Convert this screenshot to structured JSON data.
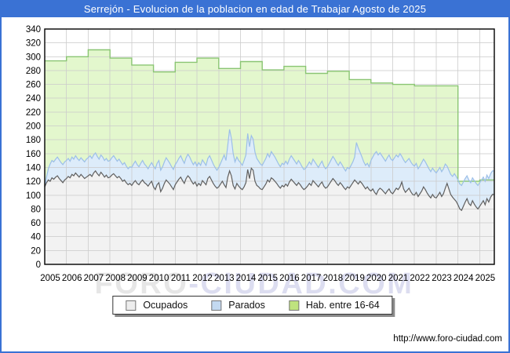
{
  "window": {
    "title": "Serrejón - Evolucion de la poblacion en edad de Trabajar Agosto de 2025"
  },
  "watermark": {
    "left": "FORO",
    "right": "-CIUDAD.COM"
  },
  "footer": {
    "url": "http://www.foro-ciudad.com"
  },
  "colors": {
    "titlebar": "#3a72d4",
    "frame_border": "#3a72d4",
    "grid": "#cccccc",
    "plot_border": "#000000",
    "plot_background": "#ffffff"
  },
  "legend": {
    "items": [
      {
        "id": "ocupados",
        "label": "Ocupados",
        "swatch": "#ededed",
        "swatch_border": "#777777"
      },
      {
        "id": "parados",
        "label": "Parados",
        "swatch": "#c3d9f1",
        "swatch_border": "#777777"
      },
      {
        "id": "hab-16-64",
        "label": "Hab. entre 16-64",
        "swatch": "#bfe37e",
        "swatch_border": "#777777"
      }
    ]
  },
  "chart_data": {
    "type": "area",
    "title": "Serrejón - Evolucion de la poblacion en edad de Trabajar Agosto de 2025",
    "x_unit": "month",
    "x_range": [
      "2005-01",
      "2025-08"
    ],
    "x_tick_years": [
      2005,
      2006,
      2007,
      2008,
      2009,
      2010,
      2011,
      2012,
      2013,
      2014,
      2015,
      2016,
      2017,
      2018,
      2019,
      2020,
      2021,
      2022,
      2023,
      2024,
      2025
    ],
    "ylim": [
      0,
      340
    ],
    "y_ticks": [
      0,
      20,
      40,
      60,
      80,
      100,
      120,
      140,
      160,
      180,
      200,
      220,
      240,
      260,
      280,
      300,
      320,
      340
    ],
    "grid": true,
    "legend_position": "bottom",
    "series": [
      {
        "name": "Hab. entre 16-64",
        "style": "yearly-step",
        "line_color": "#8ac573",
        "fill_color": "#e3f7cd",
        "years": [
          2005,
          2006,
          2007,
          2008,
          2009,
          2010,
          2011,
          2012,
          2013,
          2014,
          2015,
          2016,
          2017,
          2018,
          2019,
          2020,
          2021,
          2022,
          2023,
          2024,
          2025
        ],
        "values": [
          294,
          300,
          310,
          298,
          288,
          278,
          292,
          298,
          283,
          293,
          281,
          286,
          276,
          279,
          267,
          262,
          260,
          258,
          258,
          120,
          122
        ]
      },
      {
        "name": "Parados",
        "style": "monthly-area",
        "note": "línea dibujada = Ocupados + Parados (banda apilada)",
        "line_color": "#9cbfe8",
        "fill_color": "#ddecfa",
        "values": [
          112,
          126,
          138,
          145,
          150,
          148,
          152,
          155,
          151,
          147,
          144,
          148,
          150,
          153,
          149,
          155,
          152,
          157,
          153,
          150,
          154,
          151,
          148,
          152,
          154,
          157,
          153,
          158,
          161,
          156,
          152,
          158,
          155,
          150,
          153,
          149,
          150,
          154,
          157,
          153,
          149,
          152,
          148,
          144,
          147,
          142,
          138,
          141,
          140,
          145,
          149,
          144,
          141,
          146,
          150,
          145,
          142,
          138,
          143,
          147,
          142,
          138,
          146,
          150,
          136,
          141,
          148,
          154,
          150,
          146,
          141,
          137,
          144,
          148,
          153,
          157,
          151,
          146,
          154,
          159,
          155,
          149,
          144,
          148,
          142,
          147,
          143,
          151,
          147,
          143,
          153,
          157,
          151,
          145,
          140,
          136,
          140,
          146,
          152,
          158,
          150,
          172,
          195,
          182,
          160,
          148,
          155,
          150,
          147,
          143,
          150,
          158,
          189,
          170,
          186,
          181,
          162,
          153,
          149,
          145,
          143,
          148,
          153,
          160,
          155,
          163,
          159,
          155,
          150,
          145,
          141,
          146,
          144,
          149,
          145,
          152,
          157,
          153,
          149,
          145,
          150,
          146,
          141,
          137,
          139,
          143,
          148,
          144,
          152,
          148,
          144,
          140,
          145,
          149,
          142,
          138,
          141,
          146,
          151,
          156,
          152,
          147,
          143,
          148,
          144,
          139,
          135,
          140,
          138,
          143,
          148,
          155,
          176,
          168,
          162,
          155,
          148,
          143,
          146,
          141,
          150,
          155,
          160,
          163,
          158,
          161,
          157,
          153,
          149,
          154,
          158,
          152,
          150,
          154,
          158,
          155,
          160,
          156,
          151,
          147,
          150,
          153,
          148,
          144,
          142,
          146,
          138,
          142,
          147,
          152,
          148,
          143,
          138,
          134,
          139,
          135,
          132,
          136,
          140,
          134,
          138,
          145,
          142,
          136,
          130,
          127,
          131,
          127,
          122,
          116,
          114,
          119,
          124,
          128,
          122,
          118,
          125,
          121,
          117,
          114,
          118,
          122,
          126,
          120,
          129,
          124,
          131,
          135
        ]
      },
      {
        "name": "Ocupados",
        "style": "monthly-area",
        "line_color": "#5f5f5f",
        "fill_color": "#f2f2f2",
        "values": [
          112,
          118,
          122,
          120,
          125,
          123,
          126,
          128,
          124,
          121,
          118,
          122,
          124,
          127,
          125,
          130,
          128,
          132,
          129,
          126,
          130,
          127,
          124,
          126,
          128,
          130,
          127,
          132,
          135,
          131,
          128,
          133,
          130,
          126,
          129,
          125,
          126,
          129,
          131,
          128,
          125,
          127,
          124,
          120,
          122,
          118,
          115,
          117,
          114,
          118,
          121,
          117,
          115,
          119,
          122,
          118,
          116,
          113,
          117,
          120,
          112,
          108,
          115,
          118,
          105,
          110,
          117,
          122,
          119,
          116,
          112,
          108,
          115,
          119,
          123,
          126,
          121,
          117,
          124,
          128,
          125,
          120,
          116,
          119,
          113,
          117,
          114,
          121,
          118,
          115,
          124,
          127,
          122,
          117,
          113,
          110,
          112,
          116,
          120,
          115,
          111,
          126,
          135,
          128,
          114,
          109,
          117,
          113,
          110,
          108,
          112,
          118,
          137,
          124,
          139,
          136,
          120,
          114,
          112,
          109,
          108,
          112,
          116,
          122,
          119,
          125,
          123,
          120,
          117,
          113,
          110,
          114,
          112,
          116,
          113,
          119,
          123,
          120,
          117,
          114,
          118,
          115,
          111,
          108,
          110,
          113,
          117,
          114,
          121,
          118,
          115,
          112,
          116,
          119,
          113,
          110,
          112,
          116,
          120,
          124,
          121,
          117,
          114,
          118,
          115,
          111,
          108,
          112,
          110,
          114,
          118,
          122,
          119,
          116,
          120,
          117,
          113,
          109,
          112,
          108,
          106,
          109,
          104,
          101,
          107,
          110,
          108,
          105,
          102,
          106,
          109,
          104,
          102,
          106,
          110,
          108,
          112,
          119,
          109,
          104,
          107,
          110,
          105,
          101,
          100,
          104,
          98,
          102,
          106,
          112,
          108,
          103,
          99,
          96,
          101,
          97,
          96,
          100,
          104,
          98,
          102,
          110,
          117,
          109,
          101,
          97,
          94,
          91,
          86,
          80,
          78,
          84,
          90,
          95,
          88,
          85,
          92,
          87,
          83,
          80,
          84,
          88,
          92,
          86,
          95,
          90,
          97,
          101
        ]
      }
    ]
  }
}
